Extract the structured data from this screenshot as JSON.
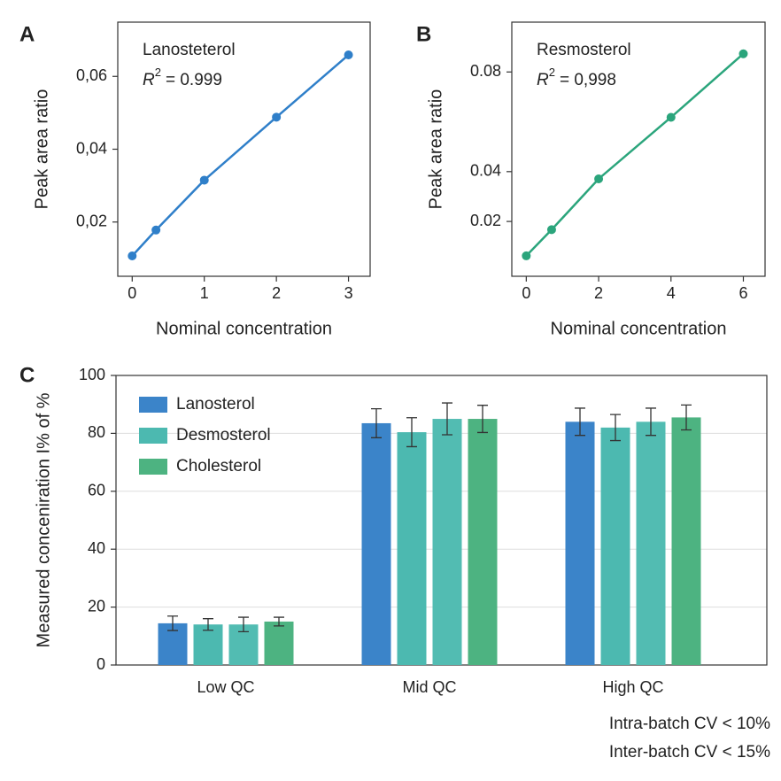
{
  "chart_data": [
    {
      "type": "line",
      "panel_label": "A",
      "annotation": {
        "name": "Lanosteterol",
        "r_symbol": "R",
        "r_exponent": "2",
        "r_text": "= 0.999"
      },
      "x_label": "Nominal concentration",
      "y_label": "Peak area ratio",
      "x": [
        0,
        0.33,
        1,
        2,
        3
      ],
      "values": [
        0.0107,
        0.0178,
        0.0315,
        0.0488,
        0.0659
      ],
      "color": "#2f7fc9",
      "xlim": [
        -0.2,
        3.3
      ],
      "xticks": [
        0,
        1,
        2,
        3
      ],
      "ylim": [
        0.0051,
        0.0749
      ],
      "yticks": [
        {
          "value": 0.02,
          "label": "0,02"
        },
        {
          "value": 0.04,
          "label": "0,04"
        },
        {
          "value": 0.06,
          "label": "0,06"
        }
      ]
    },
    {
      "type": "line",
      "panel_label": "B",
      "annotation": {
        "name": "Resmosterol",
        "r_symbol": "R",
        "r_exponent": "2",
        "r_text": "= 0,998"
      },
      "x_label": "Nominal concentration",
      "y_label": "Peak area ratio",
      "x": [
        0,
        0.7,
        2,
        4,
        6
      ],
      "values": [
        0.0062,
        0.0167,
        0.0371,
        0.0618,
        0.0873
      ],
      "color": "#2ba57c",
      "xlim": [
        -0.4,
        6.6
      ],
      "xticks": [
        0,
        2,
        4,
        6
      ],
      "ylim": [
        -0.002,
        0.1
      ],
      "yticks": [
        0.02,
        0.04,
        0.08
      ]
    },
    {
      "type": "bar",
      "panel_label": "C",
      "y_label": "Measured conceniration I% of %",
      "categories": [
        "Low QC",
        "Mid QC",
        "High QC"
      ],
      "series": [
        {
          "name": "Lanosterol",
          "color": "#3b84c9",
          "values": [
            14.4,
            83.5,
            84
          ],
          "errors": [
            2.5,
            5,
            4.7
          ]
        },
        {
          "name": "Desmosterol",
          "color": "#4cb9b0",
          "values": [
            14,
            80.4,
            82
          ],
          "errors": [
            2,
            5,
            4.5
          ]
        },
        {
          "color": "#52bcb2",
          "values": [
            14,
            85,
            84
          ],
          "errors": [
            2.5,
            5.5,
            4.7
          ]
        },
        {
          "name": "Cholesterol",
          "color": "#4db381",
          "values": [
            15,
            85,
            85.5
          ],
          "errors": [
            1.5,
            4.7,
            4.3
          ]
        }
      ],
      "ylim": [
        0,
        100
      ],
      "yticks": [
        0,
        20,
        40,
        60,
        80,
        100
      ],
      "grid": true,
      "legend": "upper left",
      "notes": [
        "Intra-batch CV < 10%",
        "Inter-batch CV < 15%"
      ]
    }
  ]
}
